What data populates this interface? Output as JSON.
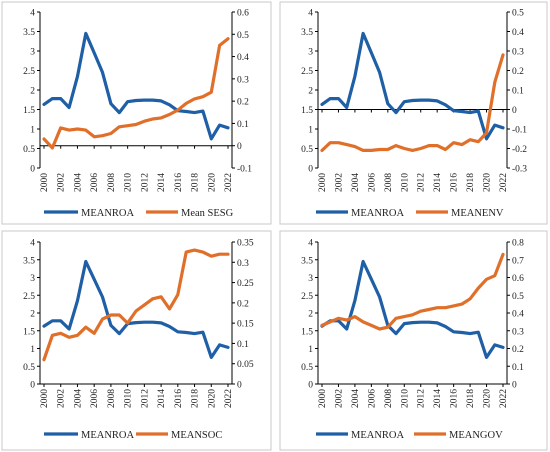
{
  "colors": {
    "roa": "#1F5FA6",
    "esg": "#E06F2A",
    "axis": "#000000",
    "panel_border": "#c8c8c8"
  },
  "chart_data": [
    {
      "type": "line",
      "x": [
        2000,
        2001,
        2002,
        2003,
        2004,
        2005,
        2006,
        2007,
        2008,
        2009,
        2010,
        2011,
        2012,
        2013,
        2014,
        2015,
        2016,
        2017,
        2018,
        2019,
        2020,
        2021,
        2022
      ],
      "xticks": [
        "2000",
        "2002",
        "2004",
        "2006",
        "2008",
        "2010",
        "2012",
        "2014",
        "2016",
        "2018",
        "2020",
        "2022"
      ],
      "left_axis": {
        "ylim": [
          0,
          4
        ],
        "ticks": [
          "0",
          "0.5",
          "1",
          "1.5",
          "2",
          "2.5",
          "3",
          "3.5",
          "4"
        ]
      },
      "right_axis": {
        "ylim": [
          -0.1,
          0.6
        ],
        "ticks": [
          "-0.1",
          "0",
          "0.1",
          "0.2",
          "0.3",
          "0.4",
          "0.5",
          "0.6"
        ]
      },
      "grid": false,
      "legend_position": "bottom",
      "series": [
        {
          "name": "MEANROA",
          "axis": "left",
          "values": [
            1.63,
            1.78,
            1.78,
            1.55,
            2.35,
            3.45,
            2.95,
            2.45,
            1.65,
            1.42,
            1.7,
            1.73,
            1.74,
            1.74,
            1.72,
            1.62,
            1.47,
            1.45,
            1.42,
            1.46,
            0.75,
            1.1,
            1.03
          ]
        },
        {
          "name": "Mean SESG",
          "axis": "right",
          "values": [
            0.03,
            -0.01,
            0.08,
            0.07,
            0.075,
            0.07,
            0.04,
            0.045,
            0.055,
            0.085,
            0.09,
            0.095,
            0.11,
            0.12,
            0.125,
            0.14,
            0.16,
            0.19,
            0.21,
            0.22,
            0.24,
            0.45,
            0.48
          ]
        }
      ]
    },
    {
      "type": "line",
      "x": [
        2000,
        2001,
        2002,
        2003,
        2004,
        2005,
        2006,
        2007,
        2008,
        2009,
        2010,
        2011,
        2012,
        2013,
        2014,
        2015,
        2016,
        2017,
        2018,
        2019,
        2020,
        2021,
        2022
      ],
      "xticks": [
        "2000",
        "2002",
        "2004",
        "2006",
        "2008",
        "2010",
        "2012",
        "2014",
        "2016",
        "2018",
        "2020",
        "2022"
      ],
      "left_axis": {
        "ylim": [
          0,
          4
        ],
        "ticks": [
          "0",
          "0.5",
          "1",
          "1.5",
          "2",
          "2.5",
          "3",
          "3.5",
          "4"
        ]
      },
      "right_axis": {
        "ylim": [
          -0.3,
          0.5
        ],
        "ticks": [
          "-0.3",
          "-0.2",
          "-0.1",
          "0",
          "0.1",
          "0.2",
          "0.3",
          "0.4",
          "0.5"
        ]
      },
      "grid": false,
      "legend_position": "bottom",
      "series": [
        {
          "name": "MEANROA",
          "axis": "left",
          "values": [
            1.63,
            1.78,
            1.78,
            1.55,
            2.35,
            3.45,
            2.95,
            2.45,
            1.65,
            1.42,
            1.7,
            1.73,
            1.74,
            1.74,
            1.72,
            1.62,
            1.47,
            1.45,
            1.42,
            1.46,
            0.75,
            1.1,
            1.03
          ]
        },
        {
          "name": "MEANENV",
          "axis": "right",
          "values": [
            -0.21,
            -0.17,
            -0.17,
            -0.18,
            -0.19,
            -0.21,
            -0.21,
            -0.205,
            -0.205,
            -0.185,
            -0.2,
            -0.21,
            -0.2,
            -0.185,
            -0.185,
            -0.205,
            -0.17,
            -0.18,
            -0.155,
            -0.165,
            -0.12,
            0.14,
            0.28
          ]
        }
      ]
    },
    {
      "type": "line",
      "x": [
        2000,
        2001,
        2002,
        2003,
        2004,
        2005,
        2006,
        2007,
        2008,
        2009,
        2010,
        2011,
        2012,
        2013,
        2014,
        2015,
        2016,
        2017,
        2018,
        2019,
        2020,
        2021,
        2022
      ],
      "xticks": [
        "2000",
        "2002",
        "2004",
        "2006",
        "2008",
        "2010",
        "2012",
        "2014",
        "2016",
        "2018",
        "2020",
        "2022"
      ],
      "left_axis": {
        "ylim": [
          0,
          4
        ],
        "ticks": [
          "0",
          "0.5",
          "1",
          "1.5",
          "2",
          "2.5",
          "3",
          "3.5",
          "4"
        ]
      },
      "right_axis": {
        "ylim": [
          0,
          0.35
        ],
        "ticks": [
          "0",
          "0.05",
          "0.1",
          "0.15",
          "0.2",
          "0.25",
          "0.3",
          "0.35"
        ]
      },
      "grid": false,
      "legend_position": "bottom",
      "series": [
        {
          "name": "MEANROA",
          "axis": "left",
          "values": [
            1.63,
            1.78,
            1.78,
            1.55,
            2.35,
            3.45,
            2.95,
            2.45,
            1.65,
            1.42,
            1.7,
            1.73,
            1.74,
            1.74,
            1.72,
            1.62,
            1.47,
            1.45,
            1.42,
            1.46,
            0.75,
            1.1,
            1.03
          ]
        },
        {
          "name": "MEANSOC",
          "axis": "right",
          "values": [
            0.06,
            0.12,
            0.125,
            0.115,
            0.12,
            0.14,
            0.125,
            0.16,
            0.17,
            0.17,
            0.15,
            0.18,
            0.195,
            0.21,
            0.215,
            0.185,
            0.22,
            0.325,
            0.33,
            0.325,
            0.315,
            0.32,
            0.32
          ]
        }
      ]
    },
    {
      "type": "line",
      "x": [
        2000,
        2001,
        2002,
        2003,
        2004,
        2005,
        2006,
        2007,
        2008,
        2009,
        2010,
        2011,
        2012,
        2013,
        2014,
        2015,
        2016,
        2017,
        2018,
        2019,
        2020,
        2021,
        2022
      ],
      "xticks": [
        "2000",
        "2002",
        "2004",
        "2006",
        "2008",
        "2010",
        "2012",
        "2014",
        "2016",
        "2018",
        "2020",
        "2022"
      ],
      "left_axis": {
        "ylim": [
          0,
          4
        ],
        "ticks": [
          "0",
          "0.5",
          "1",
          "1.5",
          "2",
          "2.5",
          "3",
          "3.5",
          "4"
        ]
      },
      "right_axis": {
        "ylim": [
          0,
          0.8
        ],
        "ticks": [
          "0",
          "0.1",
          "0.2",
          "0.3",
          "0.4",
          "0.5",
          "0.6",
          "0.7",
          "0.8"
        ]
      },
      "grid": false,
      "legend_position": "bottom",
      "series": [
        {
          "name": "MEANROA",
          "axis": "left",
          "values": [
            1.63,
            1.78,
            1.78,
            1.55,
            2.35,
            3.45,
            2.95,
            2.45,
            1.65,
            1.42,
            1.7,
            1.73,
            1.74,
            1.74,
            1.72,
            1.62,
            1.47,
            1.45,
            1.42,
            1.46,
            0.75,
            1.1,
            1.03
          ]
        },
        {
          "name": "MEANGOV",
          "axis": "right",
          "values": [
            0.33,
            0.35,
            0.37,
            0.36,
            0.38,
            0.35,
            0.33,
            0.31,
            0.32,
            0.37,
            0.38,
            0.39,
            0.41,
            0.42,
            0.43,
            0.43,
            0.44,
            0.45,
            0.48,
            0.54,
            0.59,
            0.61,
            0.73
          ]
        }
      ]
    }
  ]
}
